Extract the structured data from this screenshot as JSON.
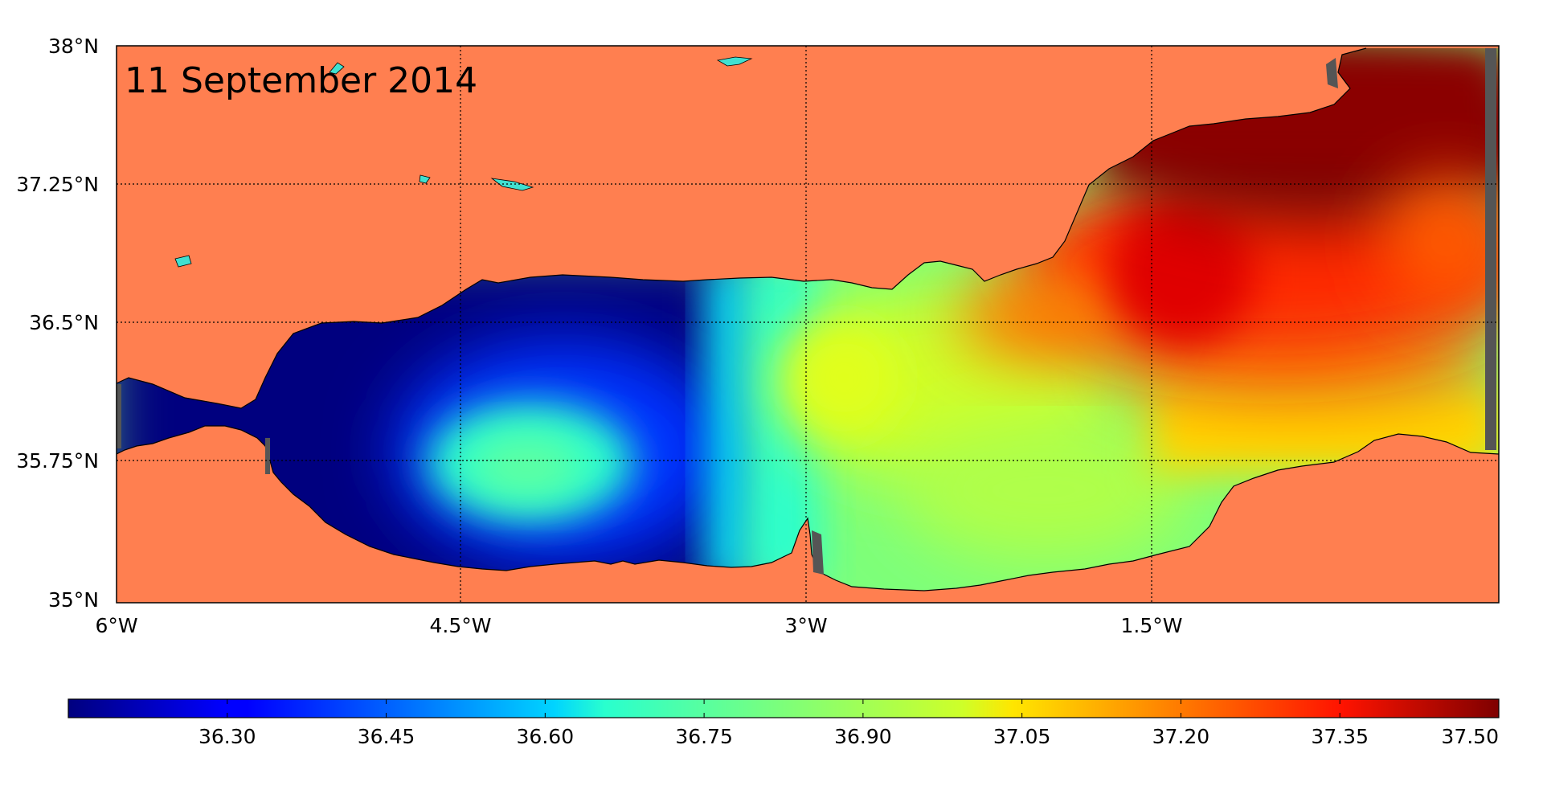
{
  "map": {
    "date_label": "11 September 2014",
    "lat_labels": [
      "38°N",
      "37.25°N",
      "36.5°N",
      "35.75°N",
      "35°N"
    ],
    "lon_labels": [
      "6°W",
      "4.5°W",
      "3°W",
      "1.5°W"
    ],
    "colors": {
      "land": "#ff7f50",
      "inland_water": "#40e0d0",
      "nodata": "#555555",
      "gridline": "#000000"
    },
    "projection": "equirectangular",
    "bounds": {
      "lon_min": -6.0,
      "lon_max": 0.0,
      "lat_min": 35.0,
      "lat_max": 38.0
    }
  },
  "colorbar": {
    "tick_labels": [
      "36.30",
      "36.45",
      "36.60",
      "36.75",
      "36.90",
      "37.05",
      "37.20",
      "37.35",
      "37.50"
    ],
    "range": [
      36.15,
      37.5
    ],
    "colormap": "jet"
  }
}
